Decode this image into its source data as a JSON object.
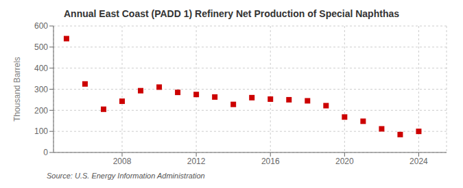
{
  "chart_data": {
    "type": "scatter",
    "title": "Annual East Coast (PADD 1) Refinery Net Production of Special Naphthas",
    "ylabel": "Thousand Barrels",
    "annotations": [
      "Source: U.S. Energy Information Administration"
    ],
    "x": [
      2005,
      2006,
      2007,
      2008,
      2009,
      2010,
      2011,
      2012,
      2013,
      2014,
      2015,
      2016,
      2017,
      2018,
      2019,
      2020,
      2021,
      2022,
      2023,
      2024
    ],
    "values": [
      540,
      325,
      205,
      243,
      293,
      310,
      285,
      275,
      263,
      228,
      260,
      253,
      250,
      245,
      222,
      168,
      148,
      112,
      85,
      100
    ],
    "color": "#cc0000",
    "marker": "square",
    "xlim": [
      2004.3,
      2025.5
    ],
    "xticks": [
      2008,
      2012,
      2016,
      2020,
      2024
    ],
    "ylim": [
      0,
      600
    ],
    "yticks": [
      0,
      100,
      200,
      300,
      400,
      500,
      600
    ],
    "grid": true
  }
}
